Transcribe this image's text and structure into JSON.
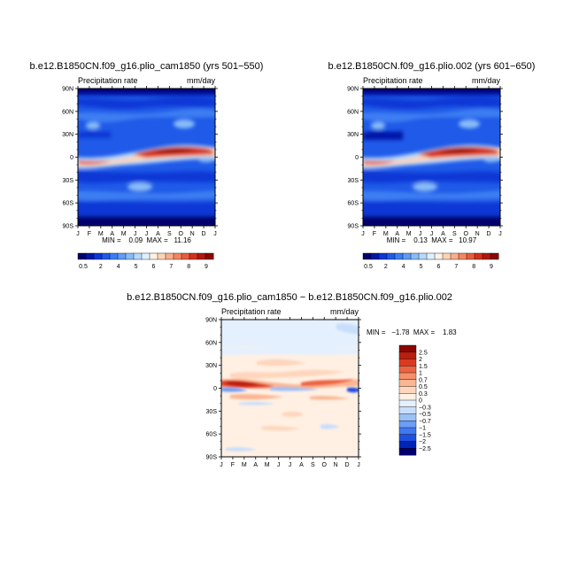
{
  "colors": {
    "abs_scale": [
      "#00006e",
      "#0016a8",
      "#0a37d6",
      "#1f5ae8",
      "#3c7ef2",
      "#5f9cf6",
      "#88bcf8",
      "#b6d8fb",
      "#dff0ff",
      "#fff1e3",
      "#fdd3b6",
      "#f9ae89",
      "#f38661",
      "#e85c3c",
      "#d5301d",
      "#b3170c",
      "#8a0700"
    ],
    "diff_scale": [
      "#00006e",
      "#0025b8",
      "#1e4fe0",
      "#4078f0",
      "#6d9ef5",
      "#9cc0f8",
      "#c8defc",
      "#e4f0fe",
      "#fff0e3",
      "#fed6bd",
      "#fbb693",
      "#f5906a",
      "#ec6442",
      "#db3a22",
      "#bb1d0e",
      "#8a0700"
    ]
  },
  "chart_data": [
    {
      "type": "heatmap",
      "title": "b.e12.B1850CN.f09_g16.plio_cam1850 (yrs 501−550)",
      "subtitle_left": "Precipitation rate",
      "subtitle_right": "mm/day",
      "x_ticks": [
        "J",
        "F",
        "M",
        "A",
        "M",
        "J",
        "J",
        "A",
        "S",
        "O",
        "N",
        "D",
        "J"
      ],
      "y_ticks": [
        "90N",
        "60N",
        "30N",
        "0",
        "30S",
        "60S",
        "90S"
      ],
      "stats": "MIN =    0.09  MAX =   11.16",
      "colorbar_labels": [
        "0.5",
        "2",
        "4",
        "5",
        "6",
        "7",
        "8",
        "9"
      ],
      "ylim": [
        -90,
        90
      ]
    },
    {
      "type": "heatmap",
      "title": "b.e12.B1850CN.f09_g16.plio.002 (yrs 601−650)",
      "subtitle_left": "Precipitation rate",
      "subtitle_right": "mm/day",
      "x_ticks": [
        "J",
        "F",
        "M",
        "A",
        "M",
        "J",
        "J",
        "A",
        "S",
        "O",
        "N",
        "D",
        "J"
      ],
      "y_ticks": [
        "90N",
        "60N",
        "30N",
        "0",
        "30S",
        "60S",
        "90S"
      ],
      "stats": "MIN =    0.13  MAX =   10.97",
      "colorbar_labels": [
        "0.5",
        "2",
        "4",
        "5",
        "6",
        "7",
        "8",
        "9"
      ],
      "ylim": [
        -90,
        90
      ]
    },
    {
      "type": "heatmap",
      "title": "b.e12.B1850CN.f09_g16.plio_cam1850 − b.e12.B1850CN.f09_g16.plio.002",
      "subtitle_left": "Precipitation rate",
      "subtitle_right": "mm/day",
      "x_ticks": [
        "J",
        "F",
        "M",
        "A",
        "M",
        "J",
        "J",
        "A",
        "S",
        "O",
        "N",
        "D",
        "J"
      ],
      "y_ticks": [
        "90N",
        "60N",
        "30N",
        "0",
        "30S",
        "60S",
        "90S"
      ],
      "stats": "MIN =   −1.78  MAX =    1.83",
      "colorbar_labels": [
        "2.5",
        "2",
        "1.5",
        "1",
        "0.7",
        "0.5",
        "0.3",
        "0",
        "−0.3",
        "−0.5",
        "−0.7",
        "−1",
        "−1.5",
        "−2",
        "−2.5"
      ],
      "ylim": [
        -90,
        90
      ]
    }
  ]
}
